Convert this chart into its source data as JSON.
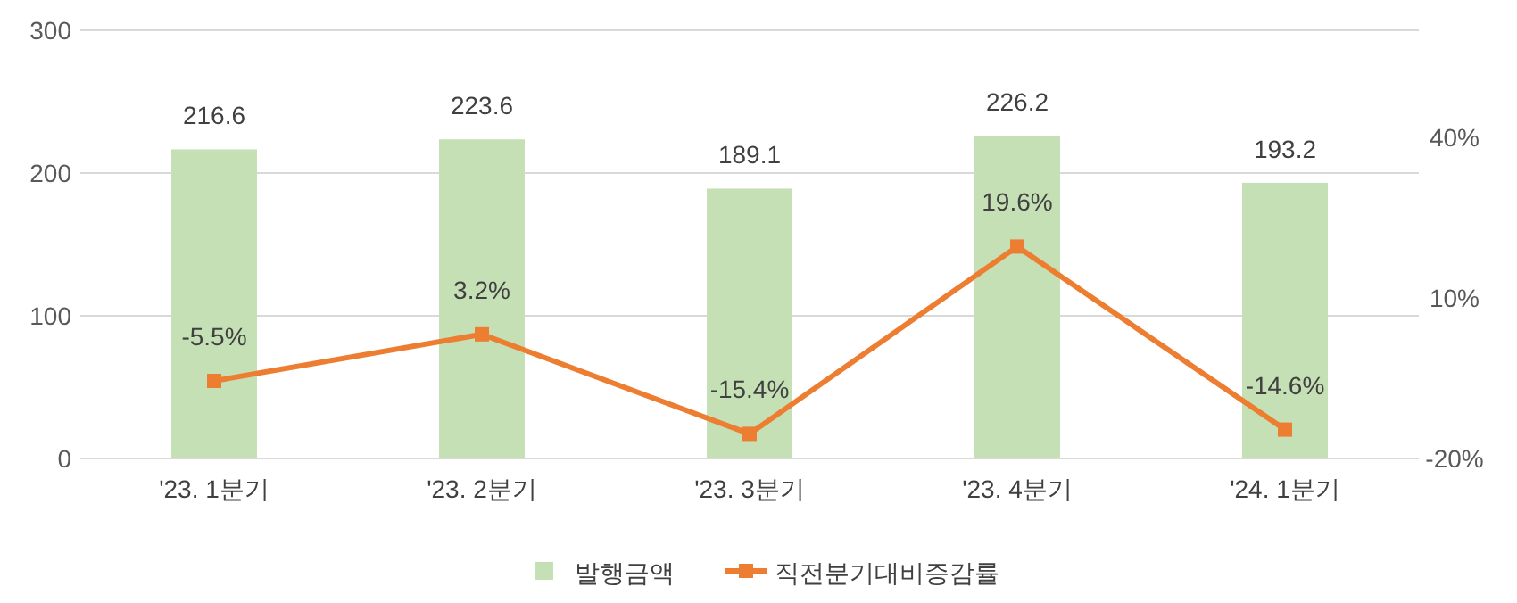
{
  "chart_data": {
    "type": "bar",
    "categories": [
      "'23. 1분기",
      "'23. 2분기",
      "'23. 3분기",
      "'23. 4분기",
      "'24. 1분기"
    ],
    "series": [
      {
        "name": "발행금액",
        "color": "#c5e0b4",
        "values": [
          216.6,
          223.6,
          189.1,
          226.2,
          193.2
        ],
        "value_labels": [
          "216.6",
          "223.6",
          "189.1",
          "226.2",
          "193.2"
        ]
      },
      {
        "name": "직전분기대비증감률",
        "type": "line",
        "axis": "y2",
        "color": "#ed7d31",
        "marker": "square",
        "values": [
          -5.5,
          3.2,
          -15.4,
          19.6,
          -14.6
        ],
        "value_labels": [
          "-5.5%",
          "3.2%",
          "-15.4%",
          "19.6%",
          "-14.6%"
        ]
      }
    ],
    "ylim": [
      0,
      300
    ],
    "yticks": [
      0,
      100,
      200,
      300
    ],
    "y2lim": [
      -20,
      60
    ],
    "y2ticks": [
      {
        "value": -20,
        "label": "-20%"
      },
      {
        "value": 10,
        "label": "10%"
      },
      {
        "value": 40,
        "label": "40%"
      }
    ],
    "grid": "y",
    "legend": "bottom"
  }
}
